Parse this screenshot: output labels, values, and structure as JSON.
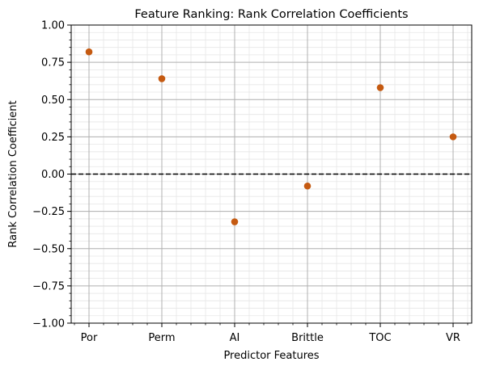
{
  "chart_data": {
    "type": "scatter",
    "title": "Feature Ranking: Rank Correlation Coefficients",
    "xlabel": "Predictor Features",
    "ylabel": "Rank Correlation Coefficient",
    "categories": [
      "Por",
      "Perm",
      "AI",
      "Brittle",
      "TOC",
      "VR"
    ],
    "values": [
      0.82,
      0.64,
      -0.32,
      -0.08,
      0.58,
      0.25
    ],
    "ylim": [
      -1.0,
      1.0
    ],
    "yticks": [
      "−1.00",
      "−0.75",
      "−0.50",
      "−0.25",
      "0.00",
      "0.25",
      "0.50",
      "0.75",
      "1.00"
    ],
    "ytick_values": [
      -1.0,
      -0.75,
      -0.5,
      -0.25,
      0.0,
      0.25,
      0.5,
      0.75,
      1.0
    ],
    "reference_line": {
      "y": 0.0,
      "style": "dashed",
      "color": "#000000"
    },
    "marker_color": "#c55a11",
    "grid": {
      "major": true,
      "minor": true,
      "major_color": "#b0b0b0",
      "minor_color": "#e6e6e6"
    }
  }
}
